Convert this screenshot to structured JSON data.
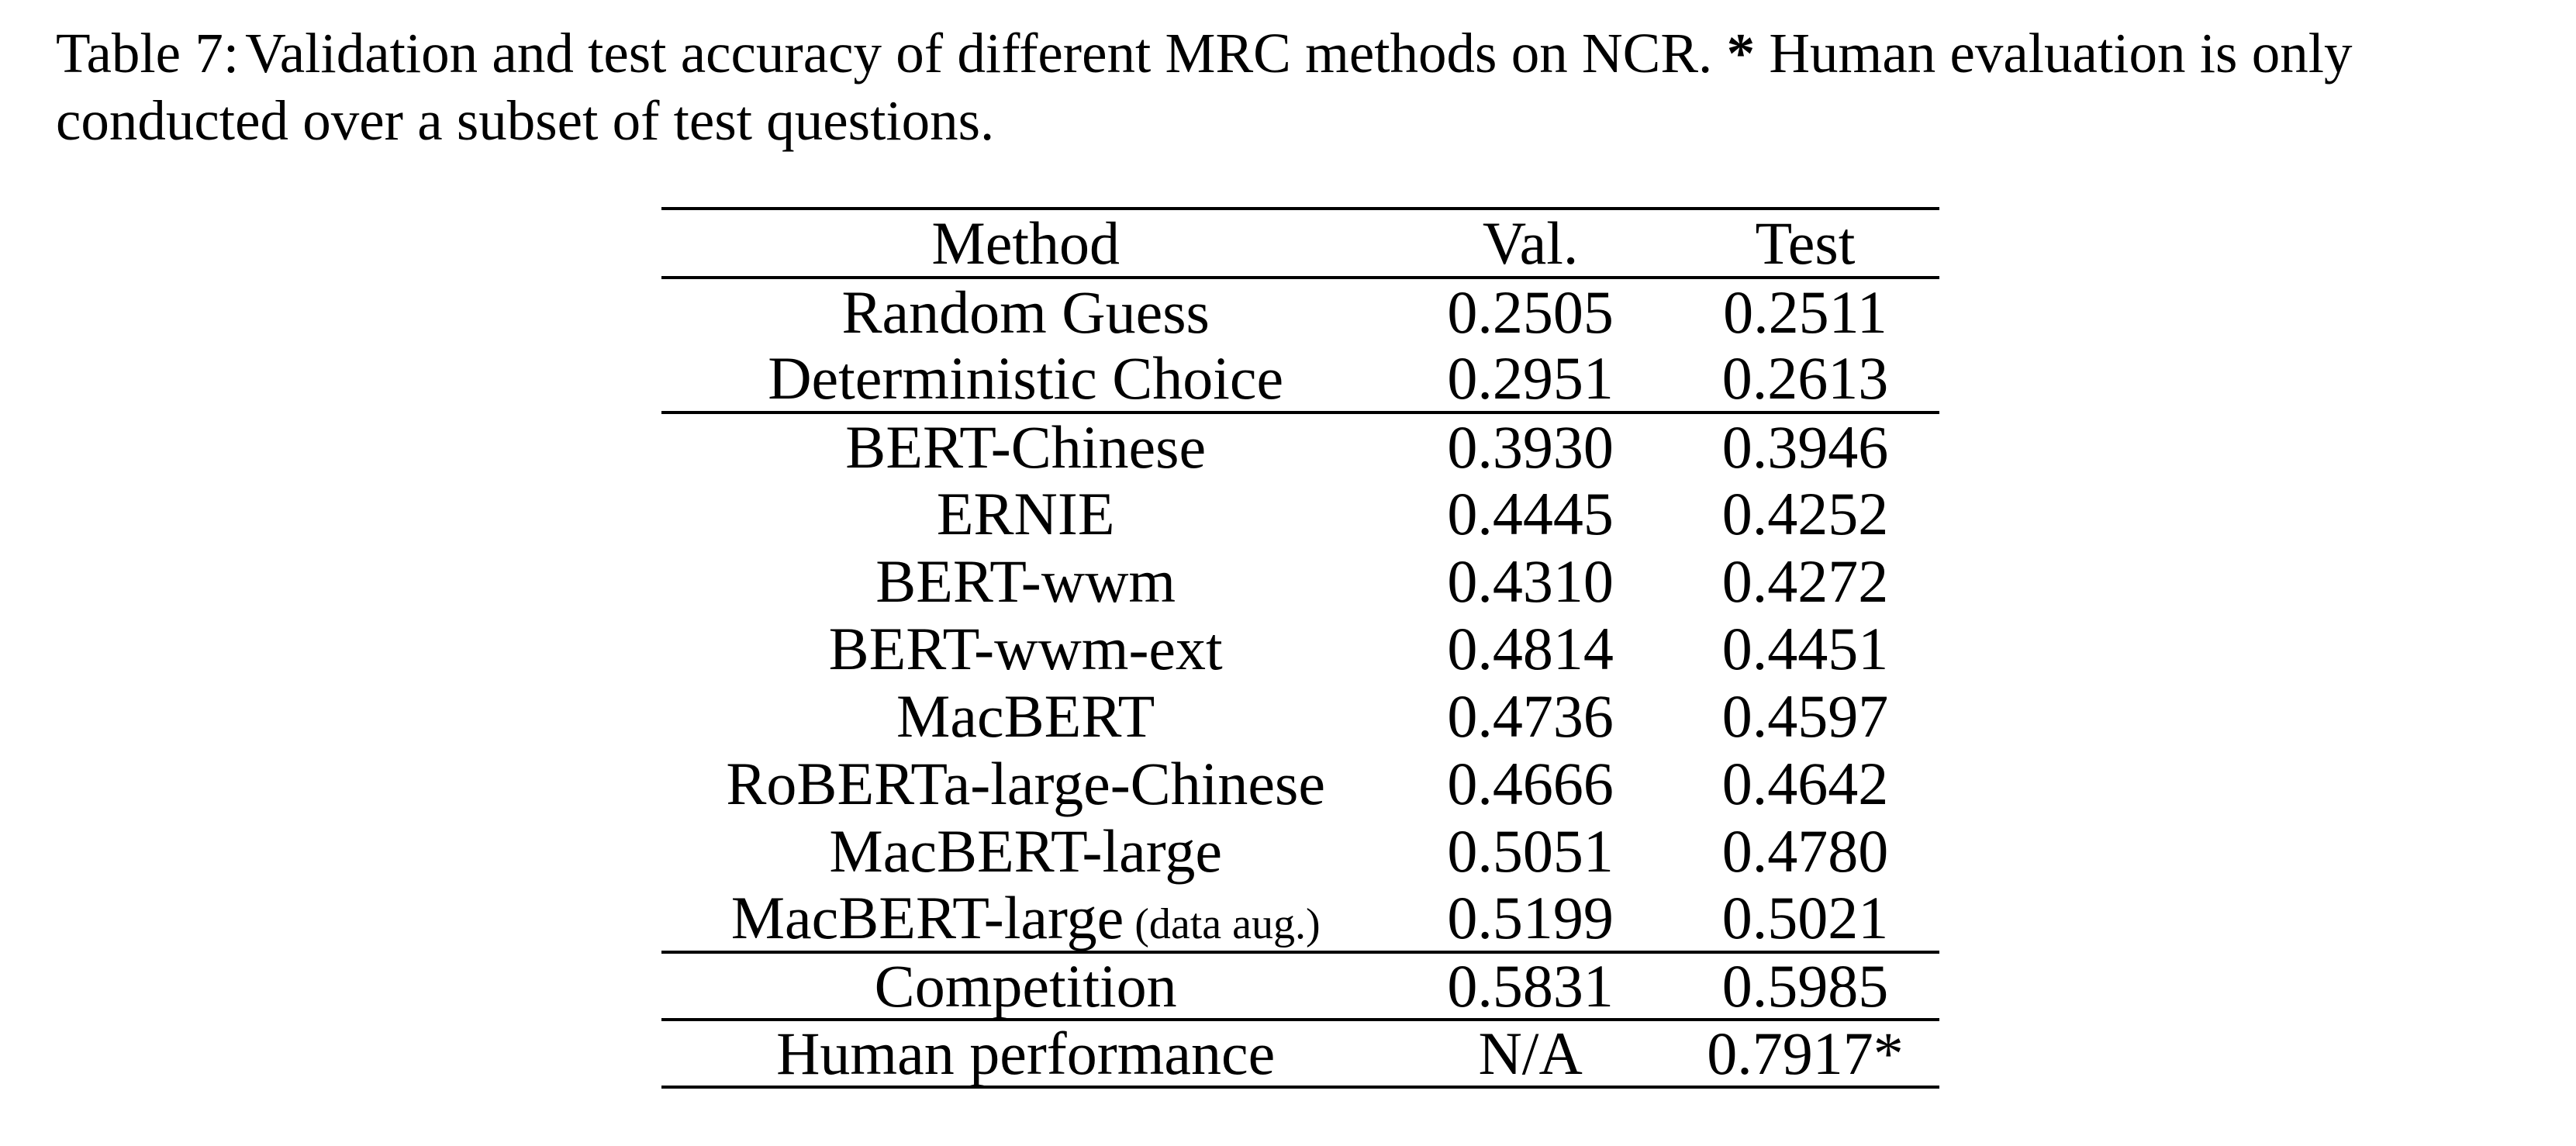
{
  "caption": {
    "label": "Table 7:",
    "line1_before_star": "Validation and test accuracy of different MRC methods on NCR.",
    "star": "*",
    "line1_after_star": "Human evaluation is only",
    "line2": "conducted over a subset of test questions."
  },
  "table": {
    "headers": [
      "Method",
      "Val.",
      "Test"
    ],
    "rows": [
      {
        "method": "Random Guess",
        "note": "",
        "val": "0.2505",
        "test": "0.2511",
        "group_start": false,
        "bold_values": false
      },
      {
        "method": "Deterministic Choice",
        "note": "",
        "val": "0.2951",
        "test": "0.2613",
        "group_start": false,
        "bold_values": false
      },
      {
        "method": "BERT-Chinese",
        "note": "",
        "val": "0.3930",
        "test": "0.3946",
        "group_start": true,
        "bold_values": false
      },
      {
        "method": "ERNIE",
        "note": "",
        "val": "0.4445",
        "test": "0.4252",
        "group_start": false,
        "bold_values": false
      },
      {
        "method": "BERT-wwm",
        "note": "",
        "val": "0.4310",
        "test": "0.4272",
        "group_start": false,
        "bold_values": false
      },
      {
        "method": "BERT-wwm-ext",
        "note": "",
        "val": "0.4814",
        "test": "0.4451",
        "group_start": false,
        "bold_values": false
      },
      {
        "method": "MacBERT",
        "note": "",
        "val": "0.4736",
        "test": "0.4597",
        "group_start": false,
        "bold_values": false
      },
      {
        "method": "RoBERTa-large-Chinese",
        "note": "",
        "val": "0.4666",
        "test": "0.4642",
        "group_start": false,
        "bold_values": false
      },
      {
        "method": "MacBERT-large",
        "note": "",
        "val": "0.5051",
        "test": "0.4780",
        "group_start": false,
        "bold_values": false
      },
      {
        "method": "MacBERT-large",
        "note": "(data aug.)",
        "val": "0.5199",
        "test": "0.5021",
        "group_start": false,
        "bold_values": true
      },
      {
        "method": "Competition",
        "note": "",
        "val": "0.5831",
        "test": "0.5985",
        "group_start": true,
        "bold_values": false
      },
      {
        "method": "Human performance",
        "note": "",
        "val": "N/A",
        "test": "0.7917*",
        "group_start": true,
        "bold_values": false
      }
    ]
  }
}
